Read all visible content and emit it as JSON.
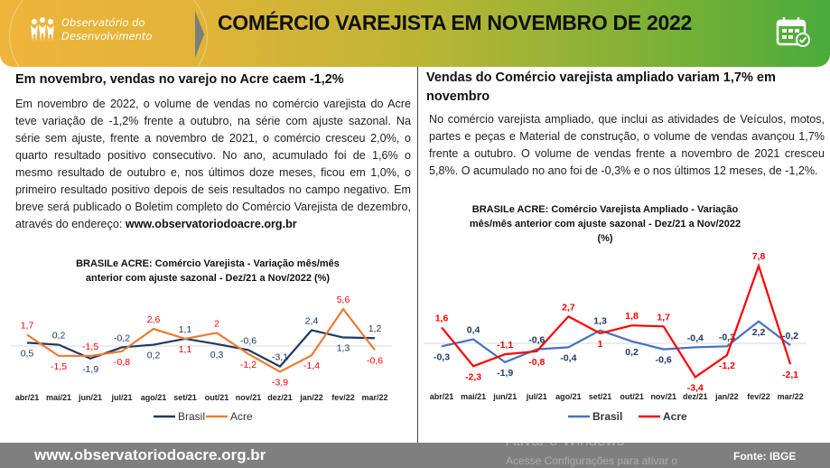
{
  "header": {
    "logo_line1": "Observatório do",
    "logo_line2": "Desenvolvimento",
    "title": "COMÉRCIO VAREJISTA EM NOVEMBRO DE 2022",
    "icon": "calendar-check-icon"
  },
  "left": {
    "heading": "Em novembro, vendas no varejo no Acre caem -1,2%",
    "paragraph": "Em novembro de 2022, o volume de vendas no comércio varejista do Acre teve variação de -1,2% frente a outubro, na série com ajuste sazonal. Na série sem ajuste, frente a novembro de 2021, o comércio cresceu 2,0%, o quarto resultado positivo consecutivo. No ano, acumulado foi de 1,6% o mesmo resultado de outubro e, nos últimos doze meses, ficou em 1,0%, o primeiro resultado positivo depois de seis resultados no campo negativo. Em breve será publicado o Boletim completo do Comércio Varejista de dezembro, através do endereço:",
    "link": "www.observatoriodoacre.org.br"
  },
  "right": {
    "heading": "Vendas do Comércio varejista ampliado variam 1,7% em novembro",
    "paragraph": "No comércio varejista ampliado, que inclui as atividades de Veículos, motos, partes e peças e Material de construção, o volume de vendas avançou 1,7% frente a outubro. O volume de vendas frente a novembro de 2021 cresceu 5,8%. O acumulado no ano foi de -0,3% e o nos últimos 12 meses, de -1,2%."
  },
  "chart_data": [
    {
      "type": "line",
      "title": "BRASILe ACRE: Comércio Varejista - Variação mês/mês anterior com ajuste sazonal - Dez/21 a Nov/2022  (%)",
      "title_lines": [
        "BRASILe ACRE: Comércio Varejista - Variação mês/mês",
        "anterior com ajuste sazonal - Dez/21 a Nov/2022  (%)"
      ],
      "categories": [
        "abr/21",
        "mai/21",
        "jun/21",
        "jul/21",
        "ago/21",
        "set/21",
        "out/21",
        "nov/21",
        "dez/21",
        "jan/22",
        "fev/22",
        "mar/22"
      ],
      "series": [
        {
          "name": "Brasil",
          "color": "#1f3864",
          "labelColor": "#1f3864",
          "values": [
            0.5,
            0.2,
            -1.9,
            -0.2,
            0.2,
            1.1,
            0.3,
            -0.6,
            -3.1,
            2.4,
            1.3,
            1.2
          ]
        },
        {
          "name": "Acre",
          "color": "#ed7d31",
          "labelColor": "#ff0000",
          "values": [
            1.7,
            -1.5,
            -1.5,
            -0.8,
            2.6,
            1.1,
            2.0,
            -1.2,
            -3.9,
            -1.4,
            5.6,
            -0.6
          ]
        }
      ],
      "legend": "bottom",
      "grid": false
    },
    {
      "type": "line",
      "title": "BRASILe ACRE: Comércio Varejista Ampliado - Variação mês/mês anterior com ajuste sazonal - Dez/21 a Nov/2022 (%)",
      "title_lines": [
        "BRASILe ACRE: Comércio Varejista Ampliado - Variação",
        "mês/mês anterior com ajuste sazonal - Dez/21 a Nov/2022",
        "(%)"
      ],
      "categories": [
        "abr/21",
        "mai/21",
        "jun/21",
        "jul/21",
        "ago/21",
        "set/21",
        "out/21",
        "nov/21",
        "dez/21",
        "jan/22",
        "fev/22",
        "mar/22"
      ],
      "series": [
        {
          "name": "Brasil",
          "color": "#4472c4",
          "labelColor": "#1f3864",
          "values": [
            -0.3,
            0.4,
            -1.9,
            -0.6,
            -0.4,
            1.3,
            0.2,
            -0.6,
            -0.4,
            -0.3,
            2.2,
            -0.2
          ]
        },
        {
          "name": "Acre",
          "color": "#ff0000",
          "labelColor": "#ff0000",
          "values": [
            1.6,
            -2.3,
            -1.1,
            -0.8,
            2.7,
            1.0,
            1.8,
            1.7,
            -3.4,
            -1.2,
            7.8,
            -2.1
          ]
        }
      ],
      "legend": "bottom",
      "grid": false
    }
  ],
  "footer": {
    "url": "www.observatoriodoacre.org.br",
    "source": "Fonte: IBGE",
    "watermark1": "Ativar o Windows",
    "watermark2": "Acesse Configurações para ativar o"
  }
}
